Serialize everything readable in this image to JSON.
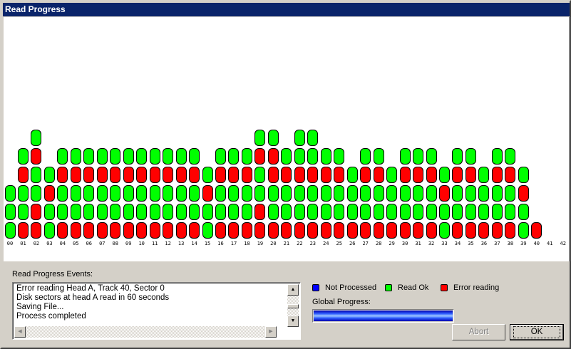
{
  "window": {
    "title": "Read Progress"
  },
  "colors": {
    "not_processed": "#0000ff",
    "read_ok": "#00ff00",
    "error": "#ff0000"
  },
  "tracks": [
    {
      "label": "00",
      "sectors": "GGG"
    },
    {
      "label": "01",
      "sectors": "RGGRG"
    },
    {
      "label": "02",
      "sectors": "RRGGRG"
    },
    {
      "label": "03",
      "sectors": "GGRG"
    },
    {
      "label": "04",
      "sectors": "RGGRG"
    },
    {
      "label": "05",
      "sectors": "RGGRG"
    },
    {
      "label": "06",
      "sectors": "RGGRG"
    },
    {
      "label": "07",
      "sectors": "RGGRG"
    },
    {
      "label": "08",
      "sectors": "RGGRG"
    },
    {
      "label": "09",
      "sectors": "RGGRG"
    },
    {
      "label": "10",
      "sectors": "RGGRG"
    },
    {
      "label": "11",
      "sectors": "RGGRG"
    },
    {
      "label": "12",
      "sectors": "RGGRG"
    },
    {
      "label": "13",
      "sectors": "RGGRG"
    },
    {
      "label": "14",
      "sectors": "RGGRG"
    },
    {
      "label": "15",
      "sectors": "GGRG"
    },
    {
      "label": "16",
      "sectors": "RGGRG"
    },
    {
      "label": "17",
      "sectors": "RGGRG"
    },
    {
      "label": "18",
      "sectors": "RGGRG"
    },
    {
      "label": "19",
      "sectors": "RRGGRG"
    },
    {
      "label": "20",
      "sectors": "RGGRRG"
    },
    {
      "label": "21",
      "sectors": "RGGRG"
    },
    {
      "label": "22",
      "sectors": "RGGRGG"
    },
    {
      "label": "23",
      "sectors": "RGGRGG"
    },
    {
      "label": "24",
      "sectors": "RGGRG"
    },
    {
      "label": "25",
      "sectors": "RGGRG"
    },
    {
      "label": "26",
      "sectors": "RGGG"
    },
    {
      "label": "27",
      "sectors": "RGGRG"
    },
    {
      "label": "28",
      "sectors": "RGGRG"
    },
    {
      "label": "29",
      "sectors": "RGGG"
    },
    {
      "label": "30",
      "sectors": "RGGRG"
    },
    {
      "label": "31",
      "sectors": "RGGRG"
    },
    {
      "label": "32",
      "sectors": "RGGRG"
    },
    {
      "label": "33",
      "sectors": "GGRG"
    },
    {
      "label": "34",
      "sectors": "RGGRG"
    },
    {
      "label": "35",
      "sectors": "RGGRG"
    },
    {
      "label": "36",
      "sectors": "RGGG"
    },
    {
      "label": "37",
      "sectors": "RGGRG"
    },
    {
      "label": "38",
      "sectors": "RGGRG"
    },
    {
      "label": "39",
      "sectors": "GGRG"
    },
    {
      "label": "40",
      "sectors": "R"
    },
    {
      "label": "41",
      "sectors": ""
    },
    {
      "label": "42",
      "sectors": ""
    }
  ],
  "events": {
    "label": "Read Progress Events:",
    "lines": [
      "Error reading Head A, Track 40, Sector 0",
      "Disk sectors at head A read in 60 seconds",
      "Saving File...",
      "Process completed"
    ]
  },
  "legend": {
    "not_processed": "Not Processed",
    "read_ok": "Read Ok",
    "error": "Error reading"
  },
  "progress": {
    "label": "Global Progress:",
    "percent": 100
  },
  "buttons": {
    "abort": "Abort",
    "ok": "OK"
  }
}
